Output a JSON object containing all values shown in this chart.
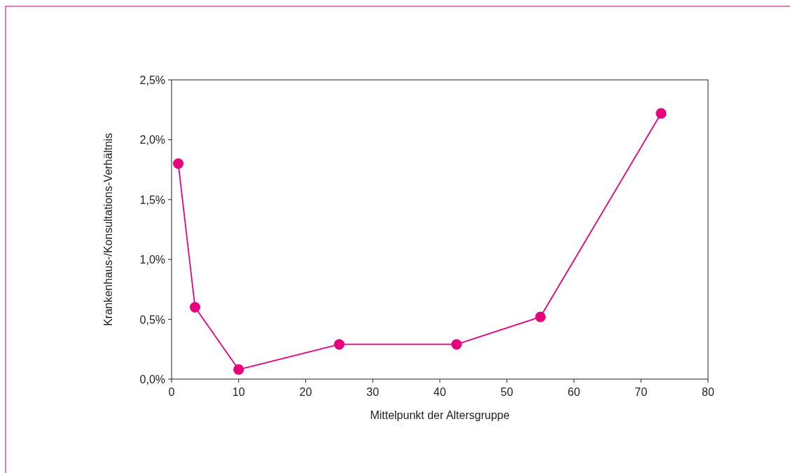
{
  "chart_data": {
    "type": "line",
    "xlabel": "Mittelpunkt der Altersgruppe",
    "ylabel": "Krankenhaus-/Konsultations-Verhältnis",
    "x": [
      1,
      3.5,
      10,
      25,
      42.5,
      55,
      73
    ],
    "series": [
      {
        "color": "#e6007e",
        "values": [
          1.8,
          0.6,
          0.08,
          0.29,
          0.29,
          0.52,
          2.22
        ]
      }
    ],
    "xlim": [
      0,
      80
    ],
    "xticks": [
      0,
      10,
      20,
      30,
      40,
      50,
      60,
      70,
      80
    ],
    "ylim": [
      0,
      2.5
    ],
    "yticks": [
      {
        "value": 0,
        "label": "0,0%"
      },
      {
        "value": 0.5,
        "label": "0,5%"
      },
      {
        "value": 1,
        "label": "1,0%"
      },
      {
        "value": 1.5,
        "label": "1,5%"
      },
      {
        "value": 2,
        "label": "2,0%"
      },
      {
        "value": 2.5,
        "label": "2,5%"
      }
    ],
    "marker": "circle",
    "line_style": "solid",
    "grid": false
  }
}
